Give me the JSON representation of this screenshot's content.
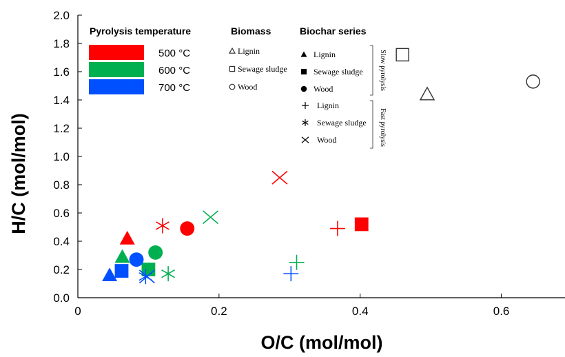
{
  "chart_data": {
    "type": "scatter",
    "xlabel": "O/C (mol/mol)",
    "ylabel": "H/C (mol/mol)",
    "xlim": [
      0,
      0.7
    ],
    "ylim": [
      0,
      2.0
    ],
    "xticks": [
      "0",
      "0.2",
      "0.4",
      "0.6"
    ],
    "yticks": [
      "0.0",
      "0.2",
      "0.4",
      "0.6",
      "0.8",
      "1.0",
      "1.2",
      "1.4",
      "1.6",
      "1.8",
      "2.0"
    ],
    "grid": false,
    "legend": {
      "placement": "top-left",
      "temperature_title": "Pyrolysis temperature",
      "temperatures": [
        {
          "label": "500 °C",
          "color": "#ff0000"
        },
        {
          "label": "600 °C",
          "color": "#00b050"
        },
        {
          "label": "700 °C",
          "color": "#0050ff"
        }
      ],
      "biomass_title": "Biomass",
      "biomass_items": [
        "Lignin",
        "Sewage sludge",
        "Wood"
      ],
      "biochar_title": "Biochar series",
      "slow_items": [
        "Lignin",
        "Sewage sludge",
        "Wood"
      ],
      "slow_label": "Slow pyrolysis",
      "fast_items": [
        "Lignin",
        "Sewage sludge",
        "Wood"
      ],
      "fast_label": "Fast pyrolysis"
    },
    "series": [
      {
        "group": "biomass",
        "feedstock": "lignin",
        "marker": "triangle-open",
        "color": "#333333",
        "points": [
          [
            0.495,
            1.44
          ]
        ]
      },
      {
        "group": "biomass",
        "feedstock": "sewage-sludge",
        "marker": "square-open",
        "color": "#333333",
        "points": [
          [
            0.46,
            1.72
          ]
        ]
      },
      {
        "group": "biomass",
        "feedstock": "wood",
        "marker": "circle-open",
        "color": "#333333",
        "points": [
          [
            0.645,
            1.53
          ]
        ]
      },
      {
        "group": "slow",
        "feedstock": "lignin",
        "temperature": "500 °C",
        "marker": "triangle",
        "color": "#ff0000",
        "points": [
          [
            0.07,
            0.42
          ]
        ]
      },
      {
        "group": "slow",
        "feedstock": "lignin",
        "temperature": "600 °C",
        "marker": "triangle",
        "color": "#00b050",
        "points": [
          [
            0.063,
            0.29
          ]
        ]
      },
      {
        "group": "slow",
        "feedstock": "lignin",
        "temperature": "700 °C",
        "marker": "triangle",
        "color": "#0050ff",
        "points": [
          [
            0.045,
            0.16
          ]
        ]
      },
      {
        "group": "slow",
        "feedstock": "sewage-sludge",
        "temperature": "500 °C",
        "marker": "square",
        "color": "#ff0000",
        "points": [
          [
            0.402,
            0.52
          ]
        ]
      },
      {
        "group": "slow",
        "feedstock": "sewage-sludge",
        "temperature": "600 °C",
        "marker": "square",
        "color": "#00b050",
        "points": [
          [
            0.1,
            0.2
          ]
        ]
      },
      {
        "group": "slow",
        "feedstock": "sewage-sludge",
        "temperature": "700 °C",
        "marker": "square",
        "color": "#0050ff",
        "points": [
          [
            0.062,
            0.19
          ]
        ]
      },
      {
        "group": "slow",
        "feedstock": "wood",
        "temperature": "500 °C",
        "marker": "circle",
        "color": "#ff0000",
        "points": [
          [
            0.155,
            0.49
          ]
        ]
      },
      {
        "group": "slow",
        "feedstock": "wood",
        "temperature": "600 °C",
        "marker": "circle",
        "color": "#00b050",
        "points": [
          [
            0.11,
            0.32
          ]
        ]
      },
      {
        "group": "slow",
        "feedstock": "wood",
        "temperature": "700 °C",
        "marker": "circle",
        "color": "#0050ff",
        "points": [
          [
            0.083,
            0.27
          ]
        ]
      },
      {
        "group": "fast",
        "feedstock": "lignin",
        "temperature": "500 °C",
        "marker": "plus",
        "color": "#ff0000",
        "points": [
          [
            0.368,
            0.49
          ]
        ]
      },
      {
        "group": "fast",
        "feedstock": "lignin",
        "temperature": "600 °C",
        "marker": "plus",
        "color": "#00b050",
        "points": [
          [
            0.31,
            0.25
          ]
        ]
      },
      {
        "group": "fast",
        "feedstock": "lignin",
        "temperature": "700 °C",
        "marker": "plus",
        "color": "#0050ff",
        "points": [
          [
            0.302,
            0.17
          ]
        ]
      },
      {
        "group": "fast",
        "feedstock": "sewage-sludge",
        "temperature": "500 °C",
        "marker": "asterisk",
        "color": "#ff0000",
        "points": [
          [
            0.12,
            0.51
          ]
        ]
      },
      {
        "group": "fast",
        "feedstock": "sewage-sludge",
        "temperature": "600 °C",
        "marker": "asterisk",
        "color": "#00b050",
        "points": [
          [
            0.128,
            0.17
          ]
        ]
      },
      {
        "group": "fast",
        "feedstock": "sewage-sludge",
        "temperature": "700 °C",
        "marker": "asterisk",
        "color": "#0050ff",
        "points": [
          [
            0.096,
            0.15
          ]
        ]
      },
      {
        "group": "fast",
        "feedstock": "wood",
        "temperature": "500 °C",
        "marker": "x",
        "color": "#ff0000",
        "points": [
          [
            0.286,
            0.85
          ]
        ]
      },
      {
        "group": "fast",
        "feedstock": "wood",
        "temperature": "600 °C",
        "marker": "x",
        "color": "#00b050",
        "points": [
          [
            0.188,
            0.57
          ]
        ]
      },
      {
        "group": "fast",
        "feedstock": "wood",
        "temperature": "700 °C",
        "marker": "x",
        "color": "#0050ff",
        "points": [
          [
            0.098,
            0.15
          ]
        ]
      }
    ]
  }
}
